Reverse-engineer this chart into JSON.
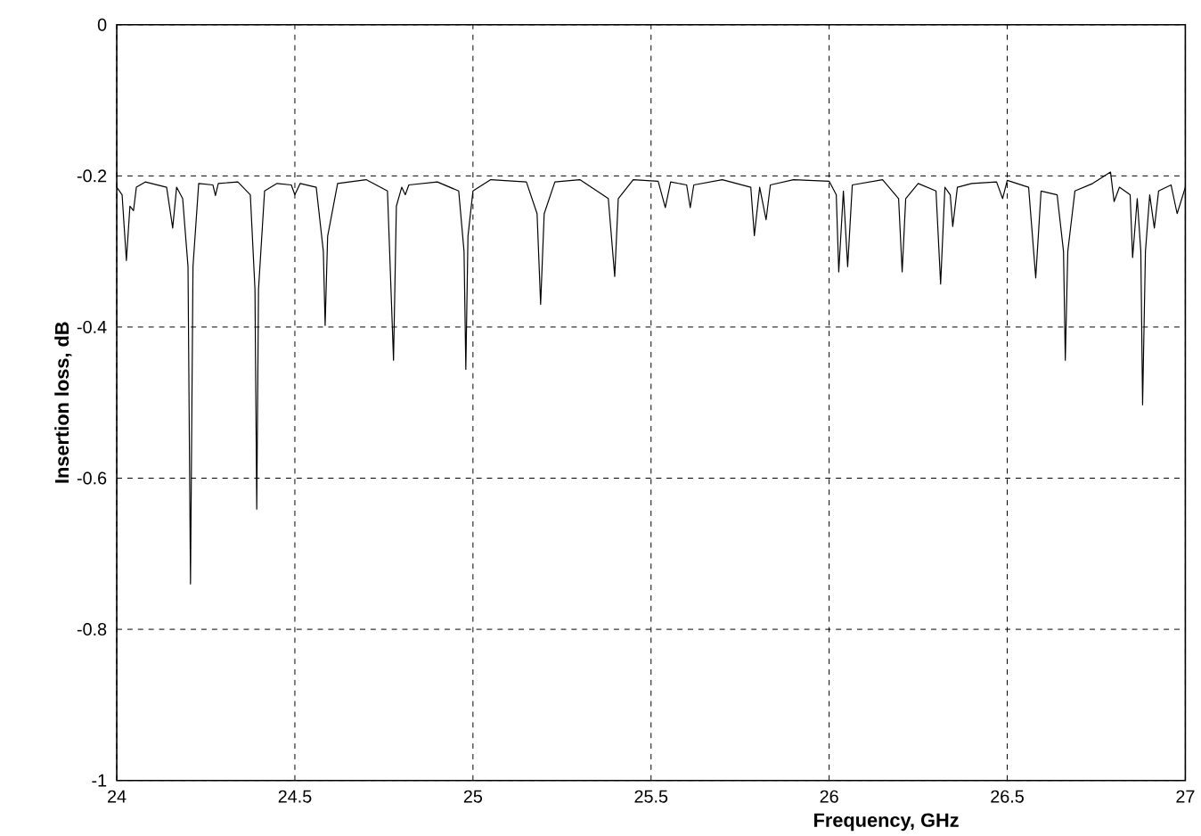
{
  "chart_data": {
    "type": "line",
    "xlabel": "Frequency, GHz",
    "ylabel": "Insertion loss, dB",
    "xlim": [
      24,
      27
    ],
    "ylim": [
      -1,
      0
    ],
    "xticks": [
      24,
      24.5,
      25,
      25.5,
      26,
      26.5,
      27
    ],
    "yticks": [
      -1,
      -0.8,
      -0.6,
      -0.4,
      -0.2,
      0
    ],
    "grid": true,
    "marker": "none",
    "line_style": "solid",
    "series": [
      {
        "color": "#000000",
        "x": [
          24.0,
          24.015,
          24.027,
          24.037,
          24.047,
          24.055,
          24.08,
          24.14,
          24.157,
          24.168,
          24.185,
          24.2,
          24.207,
          24.214,
          24.23,
          24.27,
          24.277,
          24.285,
          24.34,
          24.375,
          24.388,
          24.393,
          24.398,
          24.415,
          24.45,
          24.49,
          24.5,
          24.515,
          24.56,
          24.58,
          24.585,
          24.592,
          24.62,
          24.7,
          24.76,
          24.777,
          24.785,
          24.8,
          24.81,
          24.82,
          24.9,
          24.96,
          24.975,
          24.98,
          24.986,
          25.0,
          25.05,
          25.15,
          25.18,
          25.19,
          25.2,
          25.23,
          25.3,
          25.38,
          25.398,
          25.408,
          25.45,
          25.52,
          25.54,
          25.555,
          25.6,
          25.61,
          25.62,
          25.7,
          25.78,
          25.79,
          25.805,
          25.823,
          25.835,
          25.9,
          26.0,
          26.02,
          26.027,
          26.04,
          26.052,
          26.065,
          26.15,
          26.195,
          26.205,
          26.215,
          26.25,
          26.3,
          26.313,
          26.325,
          26.34,
          26.347,
          26.36,
          26.4,
          26.47,
          26.487,
          26.5,
          26.56,
          26.58,
          26.595,
          26.64,
          26.658,
          26.663,
          26.67,
          26.69,
          26.74,
          26.79,
          26.8,
          26.815,
          26.845,
          26.852,
          26.865,
          26.875,
          26.88,
          26.888,
          26.9,
          26.913,
          26.925,
          26.96,
          26.977,
          27.0
        ],
        "values": [
          -0.215,
          -0.225,
          -0.312,
          -0.24,
          -0.246,
          -0.215,
          -0.208,
          -0.215,
          -0.269,
          -0.215,
          -0.23,
          -0.32,
          -0.74,
          -0.32,
          -0.21,
          -0.212,
          -0.226,
          -0.21,
          -0.208,
          -0.225,
          -0.35,
          -0.641,
          -0.35,
          -0.22,
          -0.21,
          -0.212,
          -0.225,
          -0.21,
          -0.215,
          -0.3,
          -0.398,
          -0.28,
          -0.21,
          -0.205,
          -0.22,
          -0.444,
          -0.24,
          -0.215,
          -0.225,
          -0.212,
          -0.208,
          -0.22,
          -0.3,
          -0.456,
          -0.28,
          -0.22,
          -0.205,
          -0.208,
          -0.25,
          -0.37,
          -0.25,
          -0.208,
          -0.205,
          -0.23,
          -0.333,
          -0.23,
          -0.205,
          -0.207,
          -0.242,
          -0.208,
          -0.212,
          -0.242,
          -0.212,
          -0.205,
          -0.215,
          -0.279,
          -0.215,
          -0.258,
          -0.212,
          -0.205,
          -0.207,
          -0.225,
          -0.327,
          -0.22,
          -0.32,
          -0.212,
          -0.205,
          -0.23,
          -0.327,
          -0.23,
          -0.21,
          -0.22,
          -0.343,
          -0.215,
          -0.225,
          -0.267,
          -0.215,
          -0.21,
          -0.208,
          -0.23,
          -0.206,
          -0.215,
          -0.335,
          -0.22,
          -0.225,
          -0.3,
          -0.444,
          -0.3,
          -0.22,
          -0.21,
          -0.195,
          -0.234,
          -0.215,
          -0.225,
          -0.308,
          -0.23,
          -0.3,
          -0.503,
          -0.3,
          -0.225,
          -0.269,
          -0.22,
          -0.212,
          -0.25,
          -0.215
        ]
      }
    ]
  }
}
